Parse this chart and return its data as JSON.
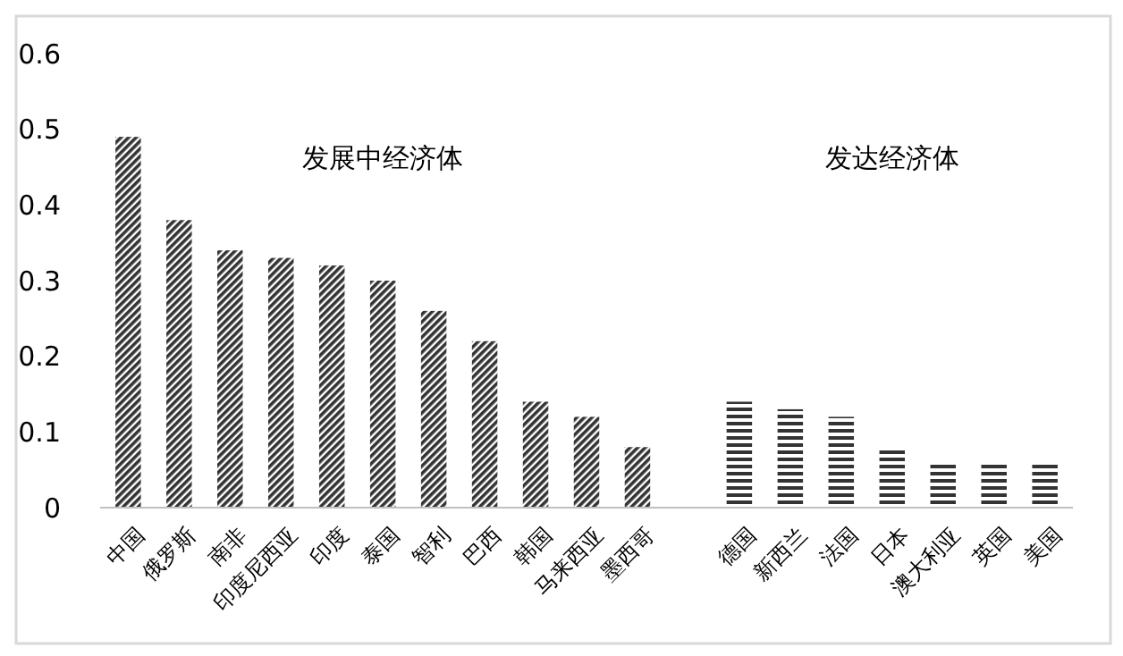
{
  "chart_data": {
    "type": "bar",
    "categories": [
      "中国",
      "俄罗斯",
      "南非",
      "印度尼西亚",
      "印度",
      "泰国",
      "智利",
      "巴西",
      "韩国",
      "马来西亚",
      "墨西哥",
      null,
      "德国",
      "新西兰",
      "法国",
      "日本",
      "澳大利亚",
      "英国",
      "美国"
    ],
    "series": [
      {
        "color": "#333333",
        "values": [
          0.49,
          0.38,
          0.34,
          0.33,
          0.32,
          0.3,
          0.26,
          0.22,
          0.14,
          0.12,
          0.08,
          null,
          null,
          null,
          null,
          null,
          null,
          null,
          null
        ]
      },
      {
        "color": "#333333",
        "values": [
          null,
          null,
          null,
          null,
          null,
          null,
          null,
          null,
          null,
          null,
          null,
          null,
          0.14,
          0.13,
          0.12,
          0.08,
          0.06,
          0.06,
          0.06
        ]
      }
    ],
    "ylim": [
      0,
      0.6
    ],
    "yticks": [
      0,
      0.1,
      0.2,
      0.3,
      0.4,
      0.5,
      0.6
    ],
    "grid": false,
    "annotations": [
      "发展中经济体",
      "发达经济体"
    ]
  }
}
